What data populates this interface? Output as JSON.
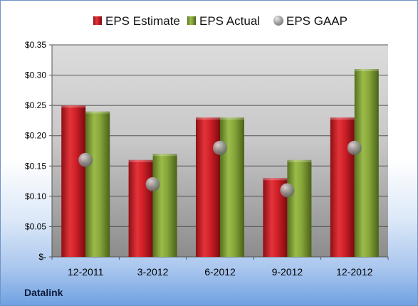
{
  "company_label": "Datalink",
  "chart_data": {
    "type": "bar",
    "categories": [
      "12-2011",
      "3-2012",
      "6-2012",
      "9-2012",
      "12-2012"
    ],
    "series": [
      {
        "name": "EPS Estimate",
        "kind": "bar",
        "color": "#d0202a",
        "values": [
          0.25,
          0.16,
          0.23,
          0.13,
          0.23
        ]
      },
      {
        "name": "EPS Actual",
        "kind": "bar",
        "color": "#7d9c34",
        "values": [
          0.24,
          0.17,
          0.23,
          0.16,
          0.31
        ]
      },
      {
        "name": "EPS GAAP",
        "kind": "marker",
        "color": "#9a9a9a",
        "values": [
          0.16,
          0.12,
          0.18,
          0.11,
          0.18
        ]
      }
    ],
    "yticks": [
      "$-",
      "$0.05",
      "$0.10",
      "$0.15",
      "$0.20",
      "$0.25",
      "$0.30",
      "$0.35"
    ],
    "ylim": [
      0,
      0.35
    ],
    "grid": true,
    "legend_position": "top"
  }
}
